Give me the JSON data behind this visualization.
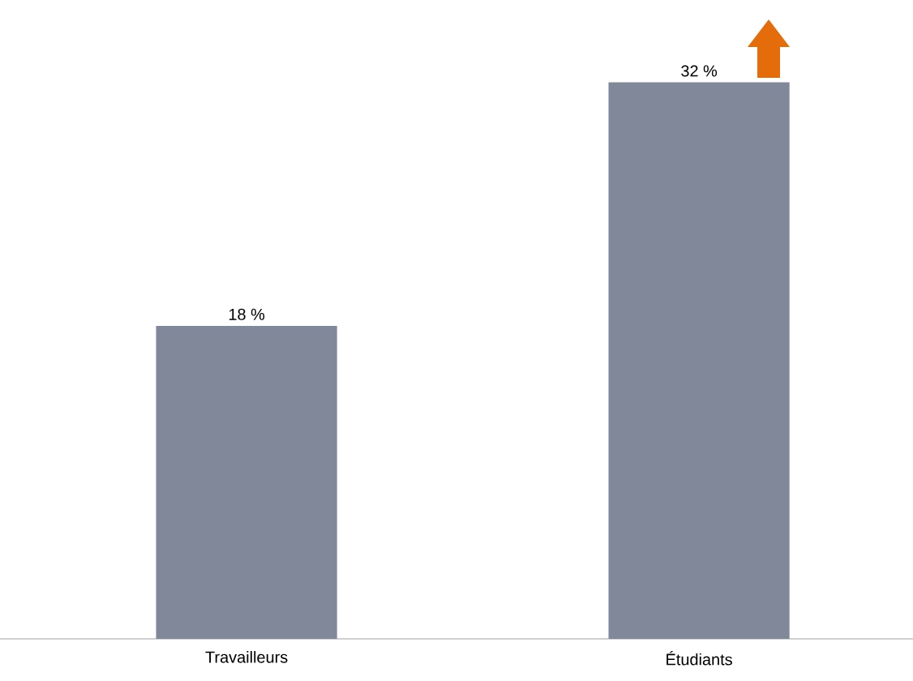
{
  "chart_data": {
    "type": "bar",
    "categories": [
      "Travailleurs",
      "Étudiants"
    ],
    "values": [
      18,
      32
    ],
    "color": "#808899",
    "value_labels": [
      "18 %",
      "32 %"
    ]
  }
}
